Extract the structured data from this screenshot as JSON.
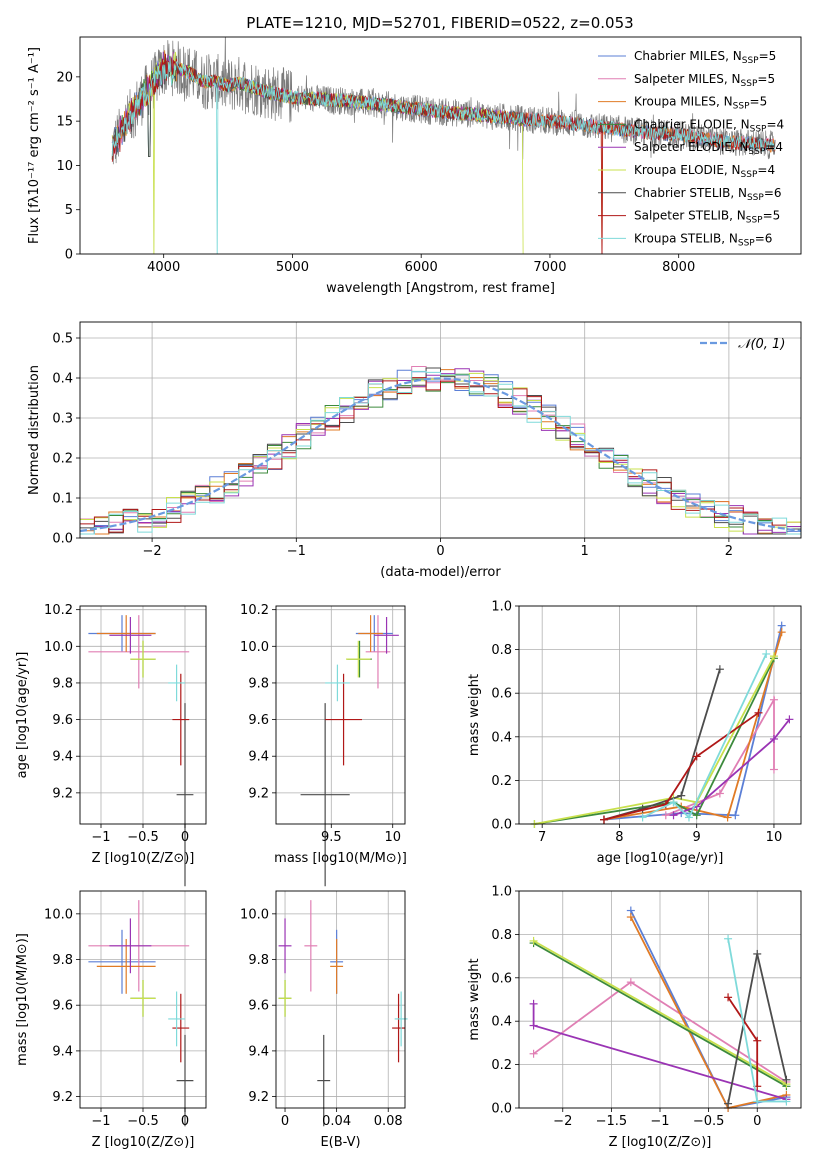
{
  "colors": {
    "Chabrier MILES": "#5b7fd6",
    "Salpeter MILES": "#e07fb4",
    "Kroupa MILES": "#e07b26",
    "Chabrier ELODIE": "#3c8a3c",
    "Salpeter ELODIE": "#9a34b4",
    "Kroupa ELODIE": "#c8e04c",
    "Chabrier STELIB": "#4c4c4c",
    "Salpeter STELIB": "#b01818",
    "Kroupa STELIB": "#7fdada",
    "data": "#7a7a7a",
    "normal": "#6a9ae0"
  },
  "chart_data": [
    {
      "type": "line",
      "title": "PLATE=1210, MJD=52701, FIBERID=0522, z=0.053",
      "xlabel": "wavelength [Angstrom, rest frame]",
      "ylabel": "Flux [fλ10⁻¹⁷ erg cm⁻² s⁻¹ A⁻¹]",
      "xlim": [
        3350,
        8950
      ],
      "ylim": [
        0,
        24.5
      ],
      "xticks": [
        4000,
        5000,
        6000,
        7000,
        8000
      ],
      "yticks": [
        0,
        5,
        10,
        15,
        20
      ],
      "grid": false,
      "legend": "upper right",
      "spectrum_continuum": [
        [
          3600,
          12
        ],
        [
          3700,
          14.5
        ],
        [
          3800,
          17
        ],
        [
          3900,
          19
        ],
        [
          4000,
          21
        ],
        [
          4100,
          21
        ],
        [
          4200,
          20.5
        ],
        [
          4300,
          19.5
        ],
        [
          4400,
          19.5
        ],
        [
          4500,
          19
        ],
        [
          4600,
          19.3
        ],
        [
          4700,
          18.8
        ],
        [
          4800,
          18.3
        ],
        [
          4900,
          18
        ],
        [
          5000,
          17.7
        ],
        [
          5200,
          17.5
        ],
        [
          5400,
          17.3
        ],
        [
          5600,
          17
        ],
        [
          5800,
          16.7
        ],
        [
          6000,
          16.3
        ],
        [
          6200,
          16
        ],
        [
          6400,
          15.8
        ],
        [
          6600,
          15.5
        ],
        [
          6800,
          15.2
        ],
        [
          7000,
          15
        ],
        [
          7200,
          14.7
        ],
        [
          7400,
          14.3
        ],
        [
          7600,
          14
        ],
        [
          7800,
          13.6
        ],
        [
          8000,
          13.5
        ],
        [
          8200,
          13
        ],
        [
          8400,
          12.6
        ],
        [
          8600,
          12.5
        ],
        [
          8700,
          12.3
        ]
      ],
      "series": [
        {
          "name": "Chabrier MILES, N_SSP=5",
          "label_main": "Chabrier MILES, N",
          "label_sub": "SSP",
          "label_end": "=5"
        },
        {
          "name": "Salpeter MILES, N_SSP=5",
          "label_main": "Salpeter MILES, N",
          "label_sub": "SSP",
          "label_end": "=5"
        },
        {
          "name": "Kroupa MILES, N_SSP=5",
          "label_main": "Kroupa MILES, N",
          "label_sub": "SSP",
          "label_end": "=5"
        },
        {
          "name": "Chabrier ELODIE, N_SSP=4",
          "label_main": "Chabrier ELODIE, N",
          "label_sub": "SSP",
          "label_end": "=4"
        },
        {
          "name": "Salpeter ELODIE, N_SSP=4",
          "label_main": "Salpeter ELODIE, N",
          "label_sub": "SSP",
          "label_end": "=4"
        },
        {
          "name": "Kroupa ELODIE, N_SSP=4",
          "label_main": "Kroupa ELODIE, N",
          "label_sub": "SSP",
          "label_end": "=4"
        },
        {
          "name": "Chabrier STELIB, N_SSP=6",
          "label_main": "Chabrier STELIB, N",
          "label_sub": "SSP",
          "label_end": "=6"
        },
        {
          "name": "Salpeter STELIB, N_SSP=5",
          "label_main": "Salpeter STELIB, N",
          "label_sub": "SSP",
          "label_end": "=5"
        },
        {
          "name": "Kroupa STELIB, N_SSP=6",
          "label_main": "Kroupa STELIB, N",
          "label_sub": "SSP",
          "label_end": "=6"
        }
      ]
    },
    {
      "type": "bar",
      "xlabel": "(data-model)/error",
      "ylabel": "Normed distribution",
      "xlim": [
        -2.5,
        2.5
      ],
      "ylim": [
        0,
        0.54
      ],
      "xticks": [
        -2,
        -1,
        0,
        1,
        2
      ],
      "yticks": [
        0.0,
        0.1,
        0.2,
        0.3,
        0.4,
        0.5
      ],
      "grid": true,
      "legend": "upper right",
      "legend_label": "𝒩(0, 1)",
      "bin_width": 0.1,
      "histogram_peak": 0.5
    },
    {
      "type": "scatter",
      "xlabel": "Z [log10(Z/Z⊙)]",
      "ylabel": "age  [log10(age/yr)]",
      "xlim": [
        -1.25,
        0.25
      ],
      "ylim": [
        9.03,
        10.22
      ],
      "xticks": [
        -1,
        -0.5,
        0
      ],
      "yticks": [
        9.2,
        9.4,
        9.6,
        9.8,
        10.0,
        10.2
      ],
      "grid": true
    },
    {
      "type": "scatter",
      "xlabel": "mass [log10(M/M⊙)]",
      "ylabel": "",
      "xlim": [
        9.05,
        10.1
      ],
      "ylim": [
        9.03,
        10.22
      ],
      "xticks": [
        9.5,
        10.0
      ],
      "yticks": [
        9.2,
        9.4,
        9.6,
        9.8,
        10.0,
        10.2
      ],
      "grid": true
    },
    {
      "type": "line",
      "xlabel": "age  [log10(age/yr)]",
      "ylabel": "mass weight",
      "xlim": [
        6.7,
        10.35
      ],
      "ylim": [
        0,
        1
      ],
      "xticks": [
        7,
        8,
        9,
        10
      ],
      "yticks": [
        0.0,
        0.2,
        0.4,
        0.6,
        0.8,
        1.0
      ],
      "grid": true
    },
    {
      "type": "scatter",
      "xlabel": "Z [log10(Z/Z⊙)]",
      "ylabel": "mass [log10(M/M⊙)]",
      "xlim": [
        -1.25,
        0.25
      ],
      "ylim": [
        9.15,
        10.1
      ],
      "xticks": [
        -1,
        -0.5,
        0
      ],
      "yticks": [
        9.2,
        9.4,
        9.6,
        9.8,
        10.0
      ],
      "grid": true
    },
    {
      "type": "scatter",
      "xlabel": "E(B-V)",
      "ylabel": "",
      "xlim": [
        -0.007,
        0.093
      ],
      "ylim": [
        9.15,
        10.1
      ],
      "xticks": [
        0.0,
        0.04,
        0.08
      ],
      "yticks": [
        9.2,
        9.4,
        9.6,
        9.8,
        10.0
      ],
      "grid": true
    },
    {
      "type": "line",
      "xlabel": "Z [log10(Z/Z⊙)]",
      "ylabel": "mass weight",
      "xlim": [
        -2.45,
        0.45
      ],
      "ylim": [
        0,
        1
      ],
      "xticks": [
        -2.0,
        -1.5,
        -1.0,
        -0.5,
        0.0
      ],
      "yticks": [
        0.0,
        0.2,
        0.4,
        0.6,
        0.8,
        1.0
      ],
      "grid": true
    }
  ],
  "fit_results": [
    {
      "name": "Chabrier MILES",
      "Z": -0.75,
      "Zerr": 0.4,
      "age": 10.07,
      "ageerr": 0.1,
      "mass": 9.85,
      "masserr": 0.15,
      "ebv": 0.04,
      "ebverr": 0.005,
      "mass_p": 9.79,
      "masserr_p": 0.14
    },
    {
      "name": "Salpeter MILES",
      "Z": -0.55,
      "Zerr": 0.6,
      "age": 9.97,
      "ageerr": 0.2,
      "mass": 9.88,
      "masserr": 0.1,
      "ebv": 0.02,
      "ebverr": 0.005,
      "mass_p": 9.86,
      "masserr_p": 0.2
    },
    {
      "name": "Kroupa MILES",
      "Z": -0.7,
      "Zerr": 0.35,
      "age": 10.07,
      "ageerr": 0.1,
      "mass": 9.82,
      "masserr": 0.1,
      "ebv": 0.04,
      "ebverr": 0.005,
      "mass_p": 9.77,
      "masserr_p": 0.12
    },
    {
      "name": "Chabrier ELODIE",
      "Z": -0.5,
      "Zerr": 0.15,
      "age": 9.93,
      "ageerr": 0.1,
      "mass": 9.73,
      "masserr": 0.1,
      "ebv": 0.0,
      "ebverr": 0.005,
      "mass_p": 9.63,
      "masserr_p": 0.08
    },
    {
      "name": "Salpeter ELODIE",
      "Z": -0.65,
      "Zerr": 0.25,
      "age": 10.06,
      "ageerr": 0.1,
      "mass": 9.95,
      "masserr": 0.1,
      "ebv": 0.0,
      "ebverr": 0.005,
      "mass_p": 9.86,
      "masserr_p": 0.12
    },
    {
      "name": "Kroupa ELODIE",
      "Z": -0.5,
      "Zerr": 0.15,
      "age": 9.93,
      "ageerr": 0.1,
      "mass": 9.72,
      "masserr": 0.1,
      "ebv": 0.0,
      "ebverr": 0.005,
      "mass_p": 9.63,
      "masserr_p": 0.08
    },
    {
      "name": "Chabrier STELIB",
      "Z": 0.0,
      "Zerr": 0.1,
      "age": 9.19,
      "ageerr": 0.5,
      "mass": 9.45,
      "masserr": 0.2,
      "ebv": 0.03,
      "ebverr": 0.005,
      "mass_p": 9.27,
      "masserr_p": 0.2
    },
    {
      "name": "Salpeter STELIB",
      "Z": -0.05,
      "Zerr": 0.1,
      "age": 9.6,
      "ageerr": 0.25,
      "mass": 9.6,
      "masserr": 0.15,
      "ebv": 0.088,
      "ebverr": 0.005,
      "mass_p": 9.5,
      "masserr_p": 0.15
    },
    {
      "name": "Kroupa STELIB",
      "Z": -0.1,
      "Zerr": 0.1,
      "age": 9.8,
      "ageerr": 0.1,
      "mass": 9.55,
      "masserr": 0.1,
      "ebv": 0.09,
      "ebverr": 0.005,
      "mass_p": 9.54,
      "masserr_p": 0.12
    }
  ],
  "mass_weight_vs_age": [
    {
      "name": "Chabrier MILES",
      "points": [
        [
          7.8,
          0.02
        ],
        [
          8.8,
          0.05
        ],
        [
          9.5,
          0.04
        ],
        [
          10.1,
          0.91
        ]
      ]
    },
    {
      "name": "Salpeter MILES",
      "points": [
        [
          8.6,
          0.04
        ],
        [
          9.3,
          0.14
        ],
        [
          10.0,
          0.57
        ],
        [
          10.0,
          0.25
        ]
      ]
    },
    {
      "name": "Kroupa MILES",
      "points": [
        [
          7.8,
          0.02
        ],
        [
          8.8,
          0.08
        ],
        [
          9.4,
          0.03
        ],
        [
          10.1,
          0.88
        ]
      ]
    },
    {
      "name": "Chabrier ELODIE",
      "points": [
        [
          6.9,
          0.0
        ],
        [
          8.7,
          0.1
        ],
        [
          9.0,
          0.04
        ],
        [
          10.0,
          0.76
        ]
      ]
    },
    {
      "name": "Salpeter ELODIE",
      "points": [
        [
          8.7,
          0.04
        ],
        [
          9.0,
          0.08
        ],
        [
          10.0,
          0.39
        ],
        [
          10.2,
          0.48
        ]
      ]
    },
    {
      "name": "Kroupa ELODIE",
      "points": [
        [
          6.9,
          0.0
        ],
        [
          8.7,
          0.12
        ],
        [
          9.0,
          0.1
        ],
        [
          10.0,
          0.77
        ]
      ]
    },
    {
      "name": "Chabrier STELIB",
      "points": [
        [
          7.8,
          0.02
        ],
        [
          8.3,
          0.07
        ],
        [
          8.8,
          0.13
        ],
        [
          9.3,
          0.71
        ]
      ]
    },
    {
      "name": "Salpeter STELIB",
      "points": [
        [
          7.8,
          0.02
        ],
        [
          8.6,
          0.09
        ],
        [
          9.0,
          0.31
        ],
        [
          9.8,
          0.51
        ]
      ]
    },
    {
      "name": "Kroupa STELIB",
      "points": [
        [
          8.3,
          0.03
        ],
        [
          8.7,
          0.1
        ],
        [
          8.9,
          0.03
        ],
        [
          9.9,
          0.78
        ]
      ]
    }
  ],
  "mass_weight_vs_Z": [
    {
      "name": "Chabrier MILES",
      "points": [
        [
          -1.3,
          0.91
        ],
        [
          -0.3,
          0.0
        ],
        [
          0.3,
          0.05
        ]
      ]
    },
    {
      "name": "Salpeter MILES",
      "points": [
        [
          -2.3,
          0.25
        ],
        [
          -1.3,
          0.58
        ],
        [
          0.3,
          0.12
        ]
      ]
    },
    {
      "name": "Kroupa MILES",
      "points": [
        [
          -1.3,
          0.88
        ],
        [
          -0.3,
          0.0
        ],
        [
          0.3,
          0.06
        ]
      ]
    },
    {
      "name": "Chabrier ELODIE",
      "points": [
        [
          -2.3,
          0.76
        ],
        [
          0.3,
          0.1
        ]
      ]
    },
    {
      "name": "Salpeter ELODIE",
      "points": [
        [
          -2.3,
          0.48
        ],
        [
          -2.3,
          0.38
        ],
        [
          0.3,
          0.04
        ]
      ]
    },
    {
      "name": "Kroupa ELODIE",
      "points": [
        [
          -2.3,
          0.77
        ],
        [
          0.3,
          0.11
        ]
      ]
    },
    {
      "name": "Chabrier STELIB",
      "points": [
        [
          -0.3,
          0.02
        ],
        [
          0.0,
          0.71
        ],
        [
          0.3,
          0.13
        ]
      ]
    },
    {
      "name": "Salpeter STELIB",
      "points": [
        [
          -0.3,
          0.51
        ],
        [
          0.0,
          0.31
        ],
        [
          0.0,
          0.1
        ]
      ]
    },
    {
      "name": "Kroupa STELIB",
      "points": [
        [
          -0.3,
          0.78
        ],
        [
          0.0,
          0.03
        ],
        [
          0.3,
          0.03
        ]
      ]
    }
  ]
}
